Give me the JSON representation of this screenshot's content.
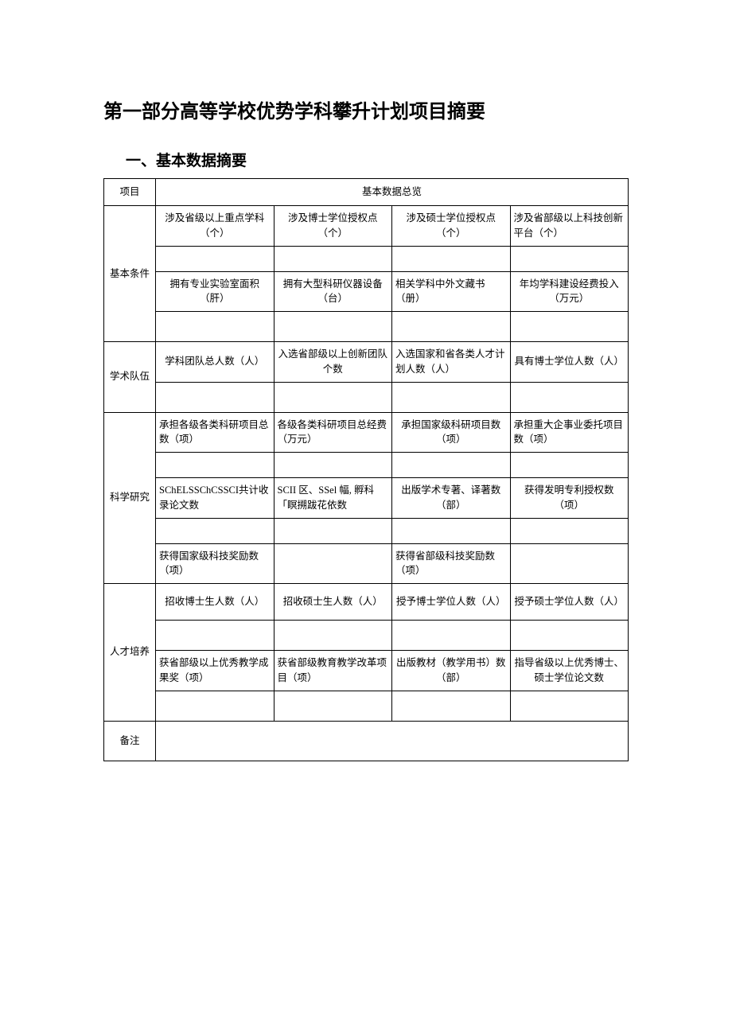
{
  "title": "第一部分高等学校优势学科攀升计划项目摘要",
  "subtitle": "一、基本数据摘要",
  "table": {
    "header": {
      "col1": "项目",
      "col2": "基本数据总览"
    },
    "sections": [
      {
        "label": "基本条件",
        "rows": [
          {
            "cells": [
              "涉及省级以上重点学科（个）",
              "涉及博士学位授权点（个）",
              "涉及硕士学位授权点（个）",
              "涉及省部级以上科技创新平台（个）"
            ]
          },
          {
            "cells": [
              "拥有专业实验室面积（肝）",
              "拥有大型科研仪器设备（台）",
              "相关学科中外文藏书（册）",
              "年均学科建设经费投入（万元）"
            ]
          }
        ]
      },
      {
        "label": "学术队伍",
        "rows": [
          {
            "cells": [
              "学科团队总人数（人）",
              "入选省部级以上创新团队个数",
              "入选国家和省各类人才计划人数（人）",
              "具有博士学位人数（人）"
            ]
          }
        ]
      },
      {
        "label": "科学研究",
        "rows": [
          {
            "cells": [
              "承担各级各类科研项目总数（项）",
              "各级各类科研项目总经费（万元）",
              "承担国家级科研项目数（项）",
              "承担重大企事业委托项目数（项）"
            ]
          },
          {
            "cells": [
              "SChELSSChCSSCI共计收录论文数",
              "SCII 区、SSel 幅, 孵科「瞑搠跋花依数",
              "出版学术专著、译著数（部）",
              "获得发明专利授权数（项）"
            ]
          },
          {
            "cells": [
              "获得国家级科技奖励数（项）",
              "",
              "获得省部级科技奖励数（项）",
              ""
            ]
          }
        ]
      },
      {
        "label": "人才培养",
        "rows": [
          {
            "cells": [
              "招收博士生人数（人）",
              "招收硕士生人数（人）",
              "授予博士学位人数（人）",
              "授予硕士学位人数（人）"
            ]
          },
          {
            "cells": [
              "获省部级以上优秀教学成果奖（项）",
              "获省部级教育教学改革项目（项）",
              "出版教材（教学用书）数（部）",
              "指导省级以上优秀博士、硕士学位论文数"
            ]
          }
        ]
      }
    ],
    "note_label": "备注"
  }
}
